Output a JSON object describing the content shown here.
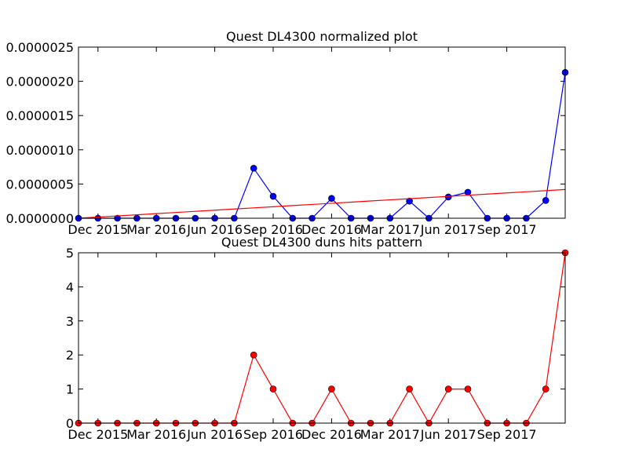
{
  "chart_data": [
    {
      "type": "line",
      "title": "Quest DL4300 normalized plot",
      "categories": [
        null,
        "Dec 2015",
        null,
        null,
        "Mar 2016",
        null,
        null,
        "Jun 2016",
        null,
        null,
        "Sep 2016",
        null,
        null,
        "Dec 2016",
        null,
        null,
        "Mar 2017",
        null,
        null,
        "Jun 2017",
        null,
        null,
        "Sep 2017",
        null,
        null,
        null
      ],
      "series": [
        {
          "color": "#0000ff",
          "marker": "o",
          "values": [
            0,
            0,
            0,
            0,
            0,
            0,
            0,
            0,
            0,
            7.3e-07,
            3.2e-07,
            0,
            0,
            2.9e-07,
            0,
            0,
            0,
            2.5e-07,
            0,
            3.1e-07,
            3.8e-07,
            0,
            0,
            0,
            2.6e-07,
            2.13e-06
          ]
        },
        {
          "color": "#ff0000",
          "values": [
            0,
            1.68e-08,
            3.36e-08,
            5.04e-08,
            6.72e-08,
            8.4e-08,
            1.008e-07,
            1.176e-07,
            1.344e-07,
            1.512e-07,
            1.68e-07,
            1.848e-07,
            2.016e-07,
            2.184e-07,
            2.352e-07,
            2.52e-07,
            2.688e-07,
            2.856e-07,
            3.024e-07,
            3.192e-07,
            3.36e-07,
            3.528e-07,
            3.696e-07,
            3.864e-07,
            4.032e-07,
            4.2e-07
          ]
        }
      ],
      "ylim": [
        0,
        2.5e-06
      ],
      "yticks": [
        {
          "value": 0,
          "label": "0.0000000"
        },
        {
          "value": 5e-07,
          "label": "0.0000005"
        },
        {
          "value": 1e-06,
          "label": "0.0000010"
        },
        {
          "value": 1.5e-06,
          "label": "0.0000015"
        },
        {
          "value": 2e-06,
          "label": "0.0000020"
        },
        {
          "value": 2.5e-06,
          "label": "0.0000025"
        }
      ]
    },
    {
      "type": "line",
      "title": "Quest DL4300 duns hits pattern",
      "categories": [
        null,
        "Dec 2015",
        null,
        null,
        "Mar 2016",
        null,
        null,
        "Jun 2016",
        null,
        null,
        "Sep 2016",
        null,
        null,
        "Dec 2016",
        null,
        null,
        "Mar 2017",
        null,
        null,
        "Jun 2017",
        null,
        null,
        "Sep 2017",
        null,
        null,
        null
      ],
      "series": [
        {
          "color": "#ff0000",
          "marker": "o",
          "values": [
            0,
            0,
            0,
            0,
            0,
            0,
            0,
            0,
            0,
            2,
            1,
            0,
            0,
            1,
            0,
            0,
            0,
            1,
            0,
            1,
            1,
            0,
            0,
            0,
            1,
            5
          ]
        }
      ],
      "ylim": [
        0,
        5
      ],
      "yticks": [
        0,
        1,
        2,
        3,
        4,
        5
      ]
    }
  ]
}
